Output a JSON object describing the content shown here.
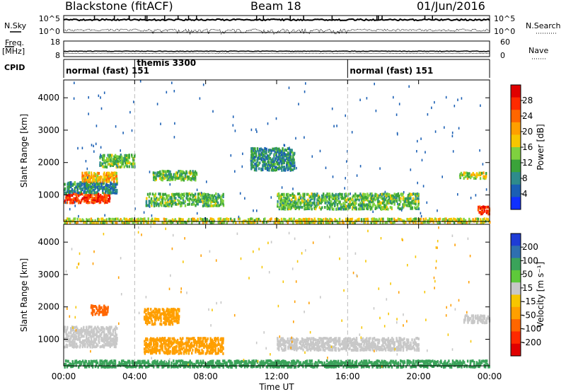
{
  "header": {
    "station": "Blackstone (fitACF)",
    "beam": "Beam 18",
    "date": "01/Jun/2016"
  },
  "noise_panel": {
    "left_label": "N.Sky",
    "left_ticks": [
      "10^5",
      "10^0"
    ],
    "right_label": "N.Search",
    "right_ticks": [
      "10^5",
      "10^0"
    ]
  },
  "freq_panel": {
    "left_label_top": "Freq.",
    "left_label_unit": "[MHz]",
    "left_ticks": [
      "18",
      "8"
    ],
    "right_label": "Nave",
    "right_ticks": [
      "60",
      "0"
    ]
  },
  "cpid_panel": {
    "label": "CPID",
    "segments": [
      {
        "name": "normal (fast) 151",
        "start_h": 0,
        "end_h": 4
      },
      {
        "name": "themis 3300",
        "start_h": 4,
        "end_h": 16
      },
      {
        "name": "normal (fast) 151",
        "start_h": 16,
        "end_h": 24
      }
    ]
  },
  "chart_data": [
    {
      "type": "heatmap",
      "quantity": "Power",
      "xlabel": "Time UT",
      "ylabel": "Slant Range [km]",
      "xlim_hours": [
        0,
        24
      ],
      "ylim_km": [
        180,
        4550
      ],
      "x_ticks": [
        "00:00",
        "04:00",
        "08:00",
        "12:00",
        "16:00",
        "20:00",
        "00:00"
      ],
      "y_ticks": [
        1000,
        2000,
        3000,
        4000
      ],
      "colorbar": {
        "label": "Power [dB]",
        "ticks": [
          4,
          8,
          12,
          16,
          20,
          24,
          28
        ],
        "colors": [
          "#1030ff",
          "#1a5fb4",
          "#2e8b8b",
          "#3aa33a",
          "#7fd13f",
          "#f7c600",
          "#ff9f00",
          "#ff6600",
          "#ff2a00",
          "#e00000"
        ]
      },
      "echo_regions": [
        {
          "t0": 0.0,
          "t1": 2.6,
          "r0": 800,
          "r1": 1100,
          "level": 28
        },
        {
          "t0": 0.0,
          "t1": 3.0,
          "r0": 1100,
          "r1": 1450,
          "level": 8
        },
        {
          "t0": 1.0,
          "t1": 3.0,
          "r0": 1450,
          "r1": 1750,
          "level": 20
        },
        {
          "t0": 2.0,
          "t1": 4.0,
          "r0": 1900,
          "r1": 2300,
          "level": 12
        },
        {
          "t0": 4.6,
          "t1": 9.0,
          "r0": 700,
          "r1": 1100,
          "level": 12
        },
        {
          "t0": 5.0,
          "t1": 7.5,
          "r0": 1500,
          "r1": 1800,
          "level": 12
        },
        {
          "t0": 10.5,
          "t1": 13.0,
          "r0": 1800,
          "r1": 2500,
          "level": 8
        },
        {
          "t0": 12.0,
          "t1": 20.0,
          "r0": 600,
          "r1": 1100,
          "level": 12
        },
        {
          "t0": 22.2,
          "t1": 23.8,
          "r0": 1550,
          "r1": 1750,
          "level": 16
        },
        {
          "t0": 23.3,
          "t1": 24.0,
          "r0": 450,
          "r1": 700,
          "level": 28
        },
        {
          "t0": 0.0,
          "t1": 24.0,
          "r0": 180,
          "r1": 330,
          "level": 16
        }
      ]
    },
    {
      "type": "heatmap",
      "quantity": "Velocity",
      "xlabel": "Time UT",
      "ylabel": "Slant Range [km]",
      "xlim_hours": [
        0,
        24
      ],
      "ylim_km": [
        180,
        4550
      ],
      "x_ticks": [
        "00:00",
        "04:00",
        "08:00",
        "12:00",
        "16:00",
        "20:00",
        "00:00"
      ],
      "y_ticks": [
        1000,
        2000,
        3000,
        4000
      ],
      "colorbar": {
        "label": "Velocity [m s⁻¹]",
        "ticks": [
          200,
          100,
          50,
          15,
          -15,
          -50,
          -100,
          -200
        ],
        "colors": [
          "#1e3cd6",
          "#2e6fb0",
          "#3aa35a",
          "#5ec93a",
          "#c8c8c8",
          "#f7c600",
          "#ff9f00",
          "#ff6600",
          "#ff2a00",
          "#e00000"
        ]
      },
      "echo_regions": [
        {
          "t0": 0.0,
          "t1": 3.0,
          "r0": 800,
          "r1": 1450,
          "level": 0
        },
        {
          "t0": 1.5,
          "t1": 2.5,
          "r0": 1800,
          "r1": 2100,
          "level": -100
        },
        {
          "t0": 4.5,
          "t1": 6.5,
          "r0": 1500,
          "r1": 2000,
          "level": -50
        },
        {
          "t0": 4.5,
          "t1": 9.0,
          "r0": 600,
          "r1": 1100,
          "level": -50
        },
        {
          "t0": 12.0,
          "t1": 20.0,
          "r0": 700,
          "r1": 1100,
          "level": 0
        },
        {
          "t0": 22.5,
          "t1": 24.0,
          "r0": 1550,
          "r1": 1800,
          "level": 0
        },
        {
          "t0": 0.0,
          "t1": 24.0,
          "r0": 180,
          "r1": 400,
          "level": 50
        }
      ]
    }
  ]
}
